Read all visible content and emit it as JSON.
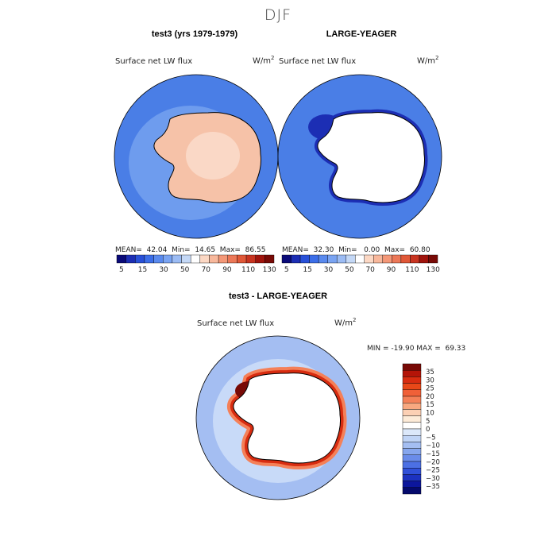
{
  "main_title": "DJF",
  "panels": [
    {
      "title": "test3 (yrs 1979-1979)",
      "field_label": "Surface net LW flux",
      "units": "W/m",
      "units_exp": "2",
      "stats": "MEAN=  42.04  Min=  14.65  Max=  86.55"
    },
    {
      "title": "LARGE-YEAGER",
      "field_label": "Surface net LW flux",
      "units": "W/m",
      "units_exp": "2",
      "stats": "MEAN=  32.30  Min=   0.00  Max=  60.80"
    },
    {
      "title": "test3 - LARGE-YEAGER",
      "field_label": "Surface net LW flux",
      "units": "W/m",
      "units_exp": "2",
      "stats": "MIN = -19.90 MAX =  69.33"
    }
  ],
  "colorbar_abs": {
    "colors": [
      "#0a0a78",
      "#1c2eb4",
      "#2850d8",
      "#3c6ee8",
      "#5a8aee",
      "#7aa4f2",
      "#9cbcf4",
      "#c4d8f6",
      "#ffffff",
      "#fcd8c4",
      "#f8b89c",
      "#f49878",
      "#ec7858",
      "#e05838",
      "#c83420",
      "#a0140c",
      "#780a06"
    ],
    "tick_labels": [
      "5",
      "15",
      "30",
      "50",
      "70",
      "90",
      "110",
      "130"
    ]
  },
  "colorbar_diff": {
    "colors": [
      "#780a06",
      "#b41408",
      "#d82c10",
      "#e84818",
      "#f06038",
      "#f48058",
      "#f8a880",
      "#fcd0b4",
      "#fdebd8",
      "#ffffff",
      "#dce8fa",
      "#c0d4f6",
      "#a4bef2",
      "#86a6ee",
      "#6a8cea",
      "#4c70e4",
      "#3050d8",
      "#1c32c0",
      "#0c169c",
      "#050a6c"
    ],
    "tick_labels": [
      "35",
      "30",
      "25",
      "20",
      "15",
      "10",
      "5",
      "0",
      "−5",
      "−10",
      "−15",
      "−20",
      "−25",
      "−30",
      "−35"
    ]
  },
  "map_colors": {
    "ocean_abs": "#4a7ee6",
    "ocean_abs_light": "#6e9cee",
    "ocean_obs": "#4a7ee6",
    "ocean_obs_dark": "#1c2eb4",
    "land_model": "#f6c2a8",
    "land_model_light": "#fad8c6",
    "land_missing": "#ffffff",
    "diff_ocean": "#a4bef2",
    "diff_ocean_light": "#c8daf8",
    "diff_coast": "#d82c10",
    "diff_coast_dark": "#780a06"
  }
}
